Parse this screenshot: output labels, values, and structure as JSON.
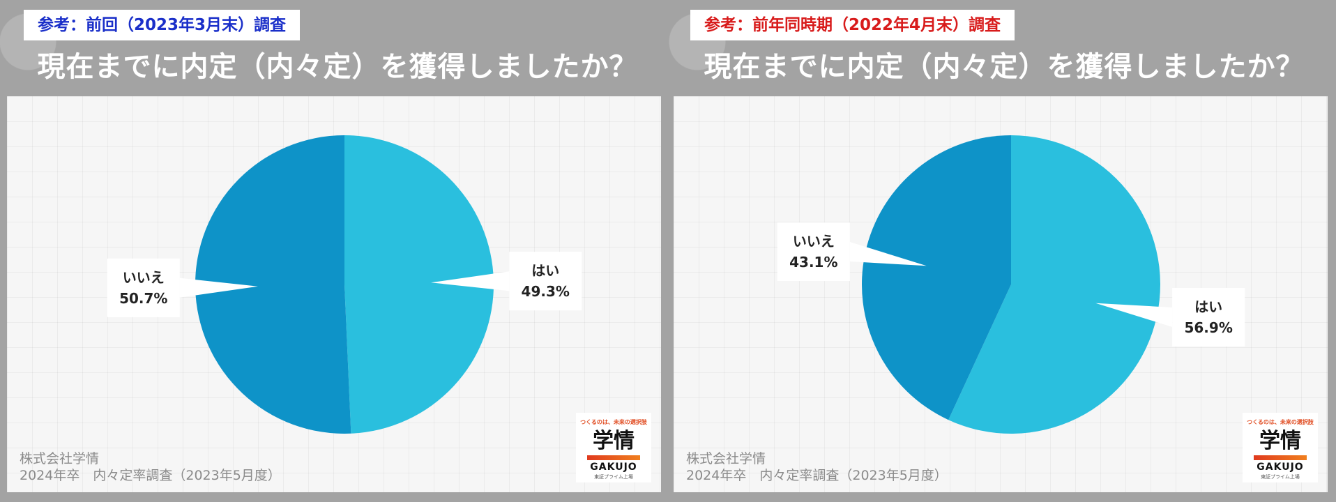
{
  "colors": {
    "yes": "#2ABFDE",
    "no": "#0E93C8",
    "left_tag": "#1a2fc9",
    "right_tag": "#d81b1b"
  },
  "panels": [
    {
      "tag": "参考：前回（2023年3月末）調査",
      "heading": "現在までに内定（内々定）を獲得しましたか？",
      "source_line1": "株式会社学情",
      "source_line2": "2024年卒　内々定率調査（2023年5月度）"
    },
    {
      "tag": "参考：前年同時期（2022年4月末）調査",
      "heading": "現在までに内定（内々定）を獲得しましたか？",
      "source_line1": "株式会社学情",
      "source_line2": "2024年卒　内々定率調査（2023年5月度）"
    }
  ],
  "logo": {
    "tagline": "つくるのは、未来の選択肢",
    "mark": "学情",
    "wordmark": "GAKUJO",
    "sub": "東証プライム上場"
  },
  "chart_data": [
    {
      "type": "pie",
      "title": "現在までに内定（内々定）を獲得しましたか？",
      "categories": [
        "はい",
        "いいえ"
      ],
      "values": [
        49.3,
        50.7
      ],
      "labels": [
        "49.3%",
        "50.7%"
      ]
    },
    {
      "type": "pie",
      "title": "現在までに内定（内々定）を獲得しましたか？",
      "categories": [
        "はい",
        "いいえ"
      ],
      "values": [
        56.9,
        43.1
      ],
      "labels": [
        "56.9%",
        "43.1%"
      ]
    }
  ]
}
